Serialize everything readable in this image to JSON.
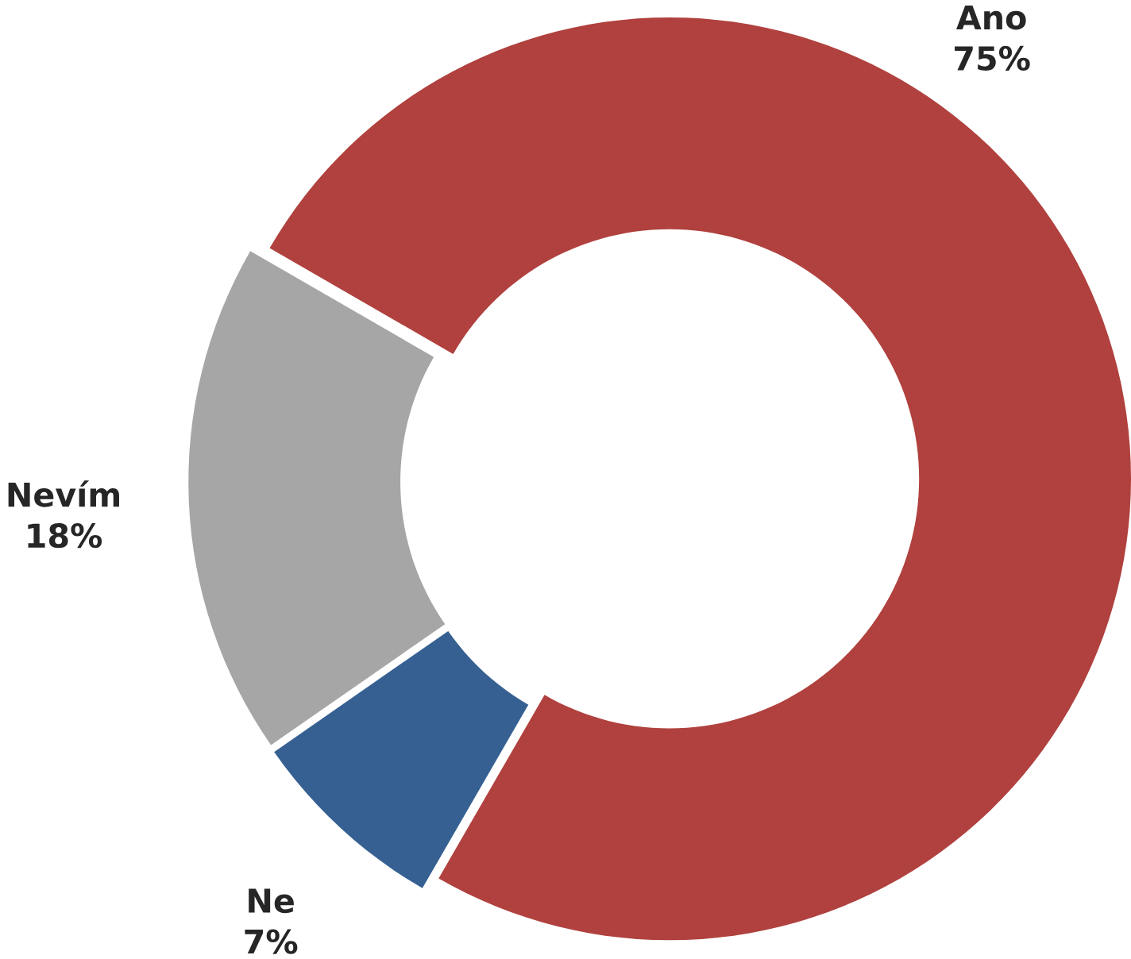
{
  "chart_data": {
    "type": "donut",
    "categories": [
      "Ano",
      "Ne",
      "Nevím"
    ],
    "values": [
      75,
      7,
      18
    ],
    "value_labels": [
      "75%",
      "7%",
      "18%"
    ],
    "colors": [
      "#b0413e",
      "#366092",
      "#a6a6a6"
    ]
  }
}
